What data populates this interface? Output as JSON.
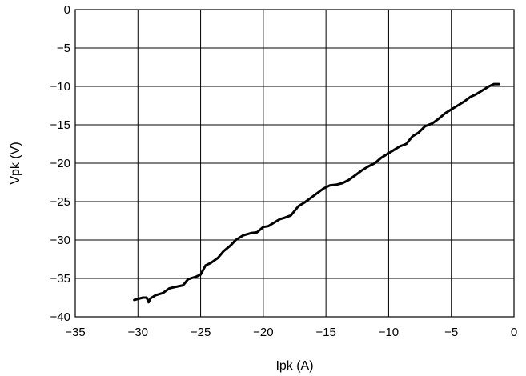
{
  "chart_data": {
    "type": "line",
    "title": "",
    "xlabel": "Ipk (A)",
    "ylabel": "Vpk (V)",
    "xlim": [
      -35,
      0
    ],
    "ylim": [
      -40,
      0
    ],
    "xticks": [
      -35,
      -30,
      -25,
      -20,
      -15,
      -10,
      -5,
      0
    ],
    "yticks": [
      0,
      -5,
      -10,
      -15,
      -20,
      -25,
      -30,
      -35,
      -40
    ],
    "xtick_labels": [
      "−35",
      "−30",
      "−25",
      "−20",
      "−15",
      "−10",
      "−5",
      "0"
    ],
    "ytick_labels": [
      "0",
      "−5",
      "−10",
      "−15",
      "−20",
      "−25",
      "−30",
      "−35",
      "−40"
    ],
    "grid": true,
    "series": [
      {
        "color": "#000000",
        "x": [
          -30.3,
          -29.6,
          -29.3,
          -29.15,
          -29.0,
          -28.6,
          -28.0,
          -27.5,
          -27.0,
          -26.4,
          -26.0,
          -25.4,
          -25.0,
          -24.6,
          -24.2,
          -23.6,
          -23.2,
          -22.6,
          -22.2,
          -21.6,
          -21.0,
          -20.5,
          -20.0,
          -19.6,
          -19.2,
          -18.7,
          -18.3,
          -17.8,
          -17.2,
          -16.7,
          -16.2,
          -15.7,
          -15.2,
          -14.7,
          -14.2,
          -13.7,
          -13.2,
          -12.6,
          -12.1,
          -11.6,
          -11.1,
          -10.6,
          -10.1,
          -9.6,
          -9.1,
          -8.6,
          -8.1,
          -7.6,
          -7.1,
          -6.5,
          -6.0,
          -5.5,
          -5.0,
          -4.5,
          -4.0,
          -3.5,
          -3.0,
          -2.5,
          -2.0,
          -1.6,
          -1.2
        ],
        "y": [
          -37.8,
          -37.5,
          -37.5,
          -38.1,
          -37.6,
          -37.2,
          -36.9,
          -36.3,
          -36.1,
          -35.9,
          -35.1,
          -34.8,
          -34.5,
          -33.3,
          -33.0,
          -32.3,
          -31.5,
          -30.7,
          -30.0,
          -29.4,
          -29.1,
          -29.0,
          -28.3,
          -28.2,
          -27.8,
          -27.3,
          -27.1,
          -26.8,
          -25.6,
          -25.1,
          -24.5,
          -23.9,
          -23.3,
          -22.9,
          -22.8,
          -22.6,
          -22.2,
          -21.5,
          -20.9,
          -20.4,
          -20.0,
          -19.3,
          -18.8,
          -18.3,
          -17.8,
          -17.5,
          -16.5,
          -16.0,
          -15.2,
          -14.8,
          -14.2,
          -13.5,
          -13.0,
          -12.5,
          -12.0,
          -11.4,
          -11.0,
          -10.5,
          -10.0,
          -9.7,
          -9.7
        ]
      }
    ]
  }
}
